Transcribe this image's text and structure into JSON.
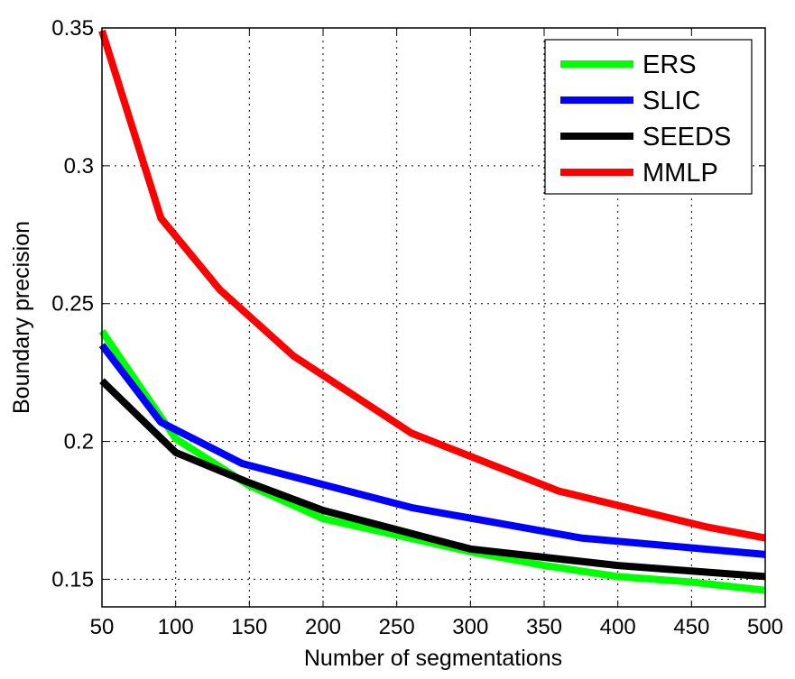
{
  "chart_data": {
    "type": "line",
    "title": "",
    "xlabel": "Number of segmentations",
    "ylabel": "Boundary precision",
    "xlim": [
      50,
      500
    ],
    "ylim": [
      0.14,
      0.35
    ],
    "xticks": [
      50,
      100,
      150,
      200,
      250,
      300,
      350,
      400,
      450,
      500
    ],
    "xtick_labels": [
      "50",
      "100",
      "150",
      "200",
      "250",
      "300",
      "350",
      "400",
      "450",
      "500"
    ],
    "yticks": [
      0.15,
      0.2,
      0.25,
      0.3,
      0.35
    ],
    "ytick_labels": [
      "0.15",
      "0.2",
      "0.25",
      "0.3",
      "0.35"
    ],
    "grid": true,
    "legend_position": "top-right",
    "series": [
      {
        "name": "ERS",
        "color": "#00ff00",
        "x": [
          50,
          100,
          150,
          200,
          250,
          300,
          350,
          400,
          450,
          500
        ],
        "y": [
          0.24,
          0.201,
          0.184,
          0.172,
          0.166,
          0.16,
          0.155,
          0.151,
          0.149,
          0.146
        ]
      },
      {
        "name": "SLIC",
        "color": "#0000ff",
        "x": [
          50,
          90,
          145,
          260,
          375,
          500
        ],
        "y": [
          0.235,
          0.207,
          0.192,
          0.176,
          0.165,
          0.159
        ]
      },
      {
        "name": "SEEDS",
        "color": "#000000",
        "x": [
          50,
          100,
          150,
          200,
          250,
          300,
          350,
          400,
          450,
          500
        ],
        "y": [
          0.222,
          0.196,
          0.185,
          0.175,
          0.168,
          0.161,
          0.158,
          0.155,
          0.153,
          0.151
        ]
      },
      {
        "name": "MMLP",
        "color": "#ff0000",
        "x": [
          50,
          90,
          130,
          180,
          260,
          360,
          460,
          500
        ],
        "y": [
          0.349,
          0.281,
          0.255,
          0.231,
          0.203,
          0.182,
          0.169,
          0.165
        ]
      }
    ]
  }
}
